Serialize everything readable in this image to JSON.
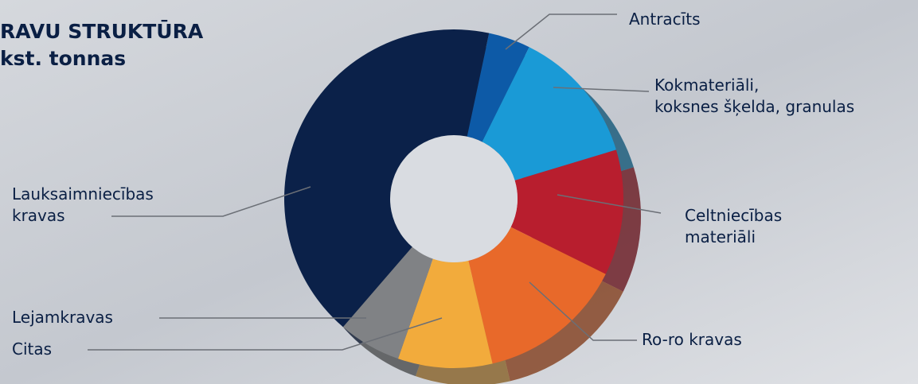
{
  "chart_data": {
    "type": "donut",
    "title": "RAVU STRUKTŪRA",
    "subtitle": "kst. tonnas",
    "categories": [
      "Antracīts",
      "Kokmateriāli,\nkoksnes šķelda, granulas",
      "Celtniecības\nmateriāli",
      "Ro-ro kravas",
      "Citas",
      "Lejamkravas",
      "Lauksaimniecības\nkravas"
    ],
    "values": [
      4,
      13,
      12,
      14,
      9,
      6,
      42
    ],
    "colors": [
      "#0d5aa7",
      "#1a9ad6",
      "#b81e2e",
      "#e8692a",
      "#f2ab3c",
      "#808285",
      "#0b2149"
    ]
  }
}
